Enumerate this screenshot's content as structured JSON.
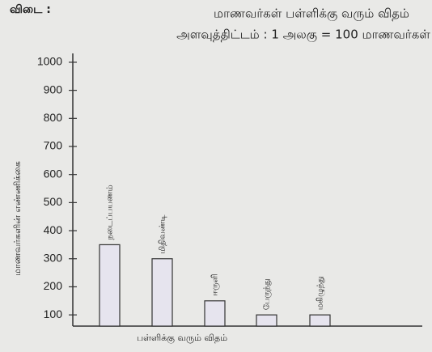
{
  "answer_label": "விடை :",
  "chart_data": {
    "type": "bar",
    "title": "மாணவர்கள் பள்ளிக்கு வரும் விதம்",
    "subtitle": "அளவுத்திட்டம் : 1 அலகு = 100 மாணவர்கள்",
    "x_label": "பள்ளிக்கு வரும் விதம்",
    "y_label": "மாணவர்களின் எண்ணிக்கை",
    "categories": [
      "நடைப்பயணம்",
      "மிதிவண்டி",
      "ஈருளி",
      "பேருந்து",
      "மகிழுந்து"
    ],
    "values": [
      350,
      300,
      150,
      100,
      100
    ],
    "color": "#e6e4ee",
    "ylim": [
      60,
      1020
    ],
    "yticks": [
      100,
      200,
      300,
      400,
      500,
      600,
      700,
      800,
      900,
      1000
    ]
  }
}
